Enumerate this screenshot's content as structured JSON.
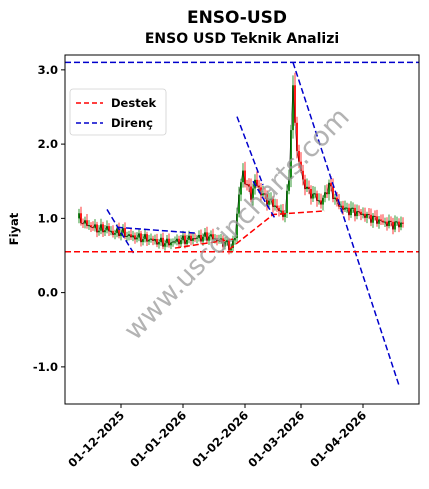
{
  "chart_data": {
    "type": "line",
    "title": "ENSO-USD",
    "subtitle": "ENSO USD Teknik Analizi",
    "ylabel": "Fiyat",
    "xlabel": "",
    "ylim": [
      -1.5,
      3.2
    ],
    "xlim": [
      "2025-11-03",
      "2026-04-29"
    ],
    "yticks": [
      3.0,
      2.0,
      1.0,
      0.0,
      -1.0
    ],
    "ytick_labels": [
      "3.0",
      "2.0",
      "1.0",
      "0.0",
      "-1.0"
    ],
    "xticks": [
      "2025-12-01",
      "2026-01-01",
      "2026-02-01",
      "2026-03-01",
      "2026-04-01"
    ],
    "xtick_labels": [
      "01-12-2025",
      "01-01-2026",
      "01-02-2026",
      "01-03-2026",
      "01-04-2026"
    ],
    "legend": {
      "position": "upper-left",
      "entries": [
        {
          "label": "Destek",
          "color": "#ff0000",
          "style": "dashed"
        },
        {
          "label": "Direnç",
          "color": "#0000cc",
          "style": "dashed"
        }
      ]
    },
    "horizontal_lines": [
      {
        "role": "Destek",
        "y": 0.55,
        "color": "#ff0000"
      },
      {
        "role": "Direnç",
        "y": 3.1,
        "color": "#0000cc"
      }
    ],
    "support_lines": [
      {
        "x": [
          "2025-12-28",
          "2026-01-26"
        ],
        "y": [
          0.6,
          0.72
        ]
      },
      {
        "x": [
          "2026-01-24",
          "2026-02-15"
        ],
        "y": [
          0.58,
          1.05
        ]
      },
      {
        "x": [
          "2026-02-14",
          "2026-03-13"
        ],
        "y": [
          1.05,
          1.1
        ]
      }
    ],
    "resistance_lines": [
      {
        "x": [
          "2025-11-24",
          "2025-12-08"
        ],
        "y": [
          1.12,
          0.5
        ]
      },
      {
        "x": [
          "2025-11-29",
          "2026-01-08"
        ],
        "y": [
          0.88,
          0.8
        ]
      },
      {
        "x": [
          "2026-01-28",
          "2026-02-10"
        ],
        "y": [
          2.37,
          1.45
        ]
      },
      {
        "x": [
          "2026-02-05",
          "2026-02-16"
        ],
        "y": [
          1.5,
          1.0
        ]
      },
      {
        "x": [
          "2026-02-25",
          "2026-04-19"
        ],
        "y": [
          3.1,
          -1.25
        ]
      }
    ],
    "price": {
      "x": [
        "2025-11-10",
        "2025-11-13",
        "2025-11-17",
        "2025-11-20",
        "2025-11-24",
        "2025-11-27",
        "2025-12-01",
        "2025-12-05",
        "2025-12-10",
        "2025-12-15",
        "2025-12-20",
        "2025-12-25",
        "2025-12-30",
        "2026-01-04",
        "2026-01-09",
        "2026-01-14",
        "2026-01-19",
        "2026-01-22",
        "2026-01-25",
        "2026-01-27",
        "2026-01-29",
        "2026-01-31",
        "2026-02-02",
        "2026-02-04",
        "2026-02-06",
        "2026-02-09",
        "2026-02-12",
        "2026-02-15",
        "2026-02-18",
        "2026-02-21",
        "2026-02-23",
        "2026-02-25",
        "2026-02-27",
        "2026-03-02",
        "2026-03-05",
        "2026-03-08",
        "2026-03-11",
        "2026-03-15",
        "2026-03-19",
        "2026-03-23",
        "2026-03-27",
        "2026-04-01",
        "2026-04-06",
        "2026-04-11",
        "2026-04-16",
        "2026-04-21"
      ],
      "y": [
        1.0,
        0.93,
        0.88,
        0.85,
        0.86,
        0.8,
        0.82,
        0.76,
        0.74,
        0.72,
        0.68,
        0.67,
        0.7,
        0.72,
        0.74,
        0.76,
        0.7,
        0.67,
        0.6,
        0.75,
        1.35,
        1.6,
        1.45,
        1.3,
        1.5,
        1.35,
        1.25,
        1.2,
        1.1,
        1.05,
        1.6,
        2.75,
        1.9,
        1.5,
        1.35,
        1.3,
        1.2,
        1.45,
        1.2,
        1.12,
        1.1,
        1.05,
        1.0,
        0.95,
        0.92,
        0.93
      ]
    }
  }
}
